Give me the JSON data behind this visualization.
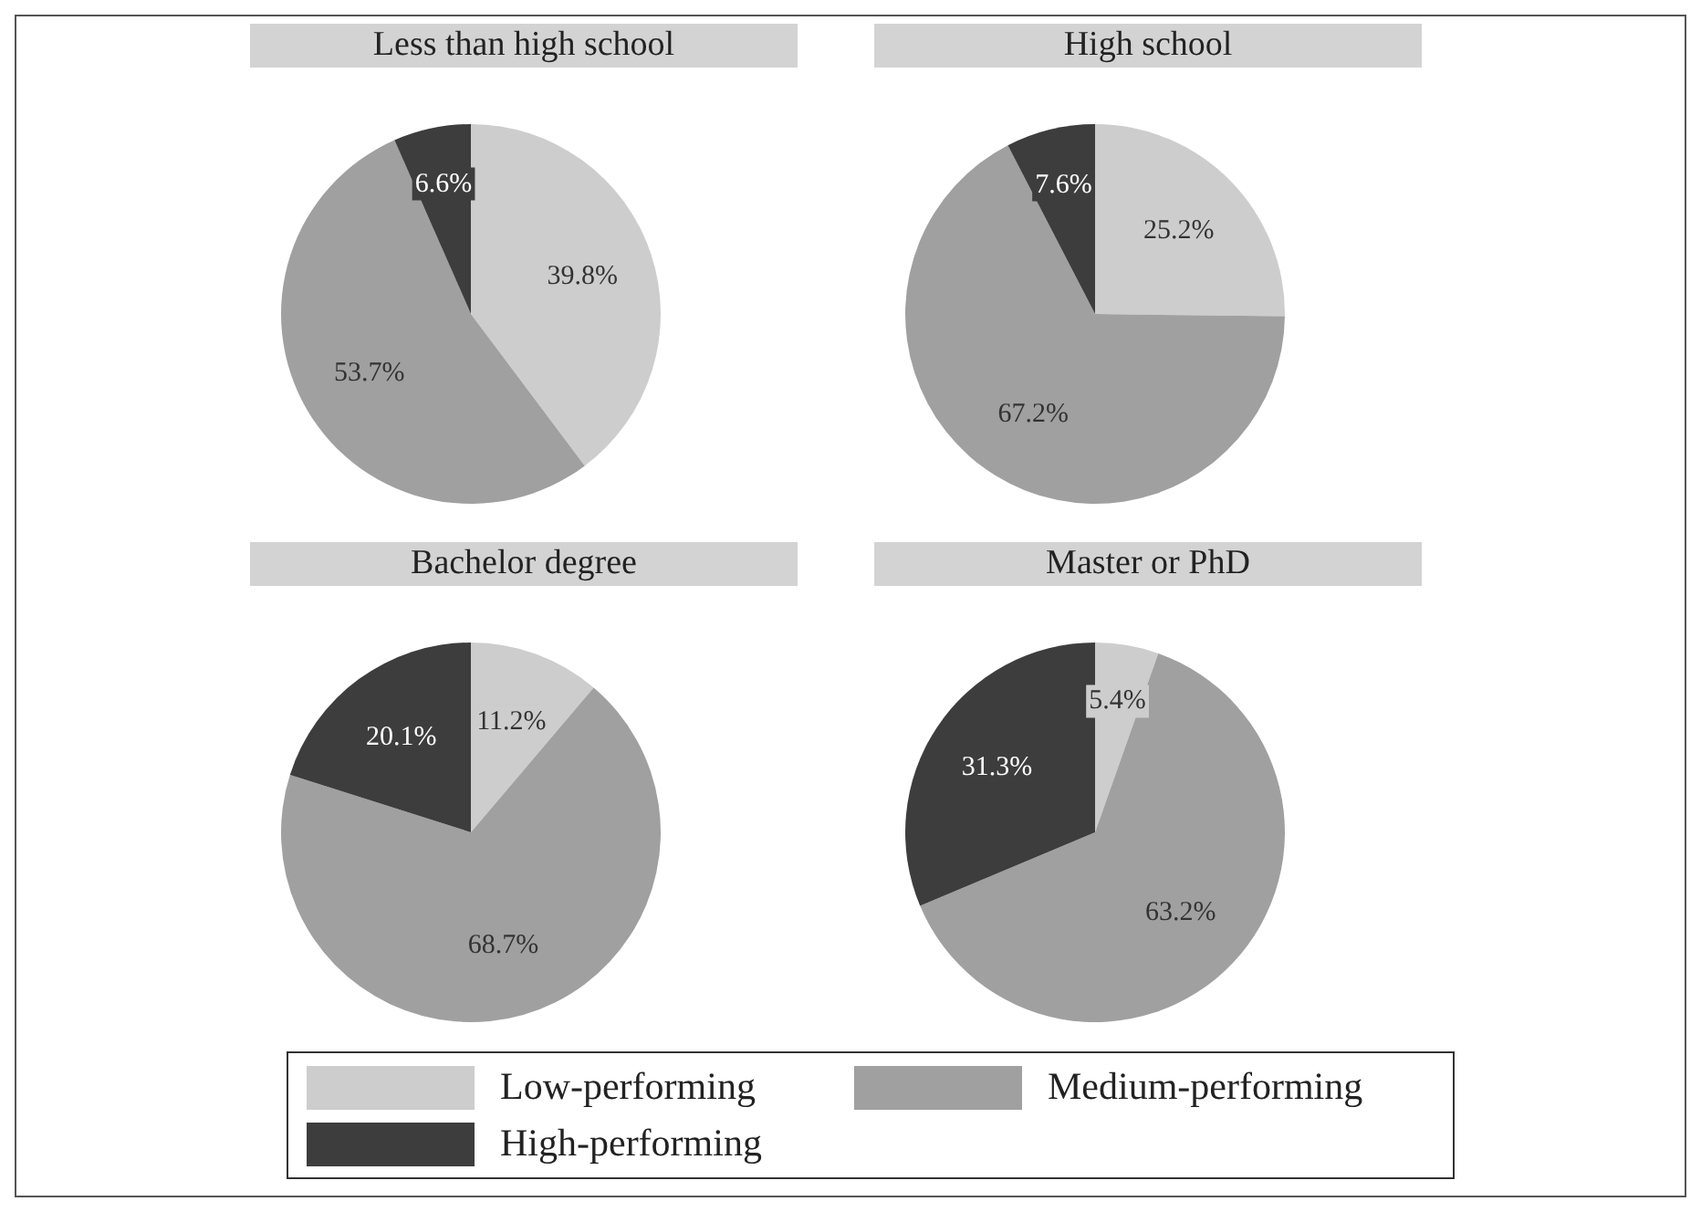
{
  "chart_data": [
    {
      "type": "pie",
      "title": "Less than high school",
      "categories": [
        "Low-performing",
        "Medium-performing",
        "High-performing"
      ],
      "values": [
        39.8,
        53.7,
        6.6
      ],
      "value_labels": [
        "39.8%",
        "53.7%",
        "6.6%"
      ],
      "colors": [
        "#cdcdcd",
        "#a0a0a0",
        "#3d3d3d"
      ],
      "legend": "bottom"
    },
    {
      "type": "pie",
      "title": "High school",
      "categories": [
        null,
        null,
        null
      ],
      "values": [
        25.2,
        67.2,
        7.6
      ],
      "value_labels": [
        "25.2%",
        "67.2%",
        "7.6%"
      ],
      "colors": [
        "#cdcdcd",
        "#a0a0a0",
        "#3d3d3d"
      ]
    },
    {
      "type": "pie",
      "title": "Bachelor degree",
      "categories": [
        null,
        null,
        null
      ],
      "values": [
        11.2,
        68.7,
        20.1
      ],
      "value_labels": [
        "11.2%",
        "68.7%",
        "20.1%"
      ],
      "colors": [
        "#cdcdcd",
        "#a0a0a0",
        "#3d3d3d"
      ]
    },
    {
      "type": "pie",
      "title": "Master or PhD",
      "categories": [
        null,
        null,
        null
      ],
      "values": [
        5.4,
        63.2,
        31.3
      ],
      "value_labels": [
        "5.4%",
        "63.2%",
        "31.3%"
      ],
      "colors": [
        "#cdcdcd",
        "#a0a0a0",
        "#3d3d3d"
      ]
    }
  ]
}
